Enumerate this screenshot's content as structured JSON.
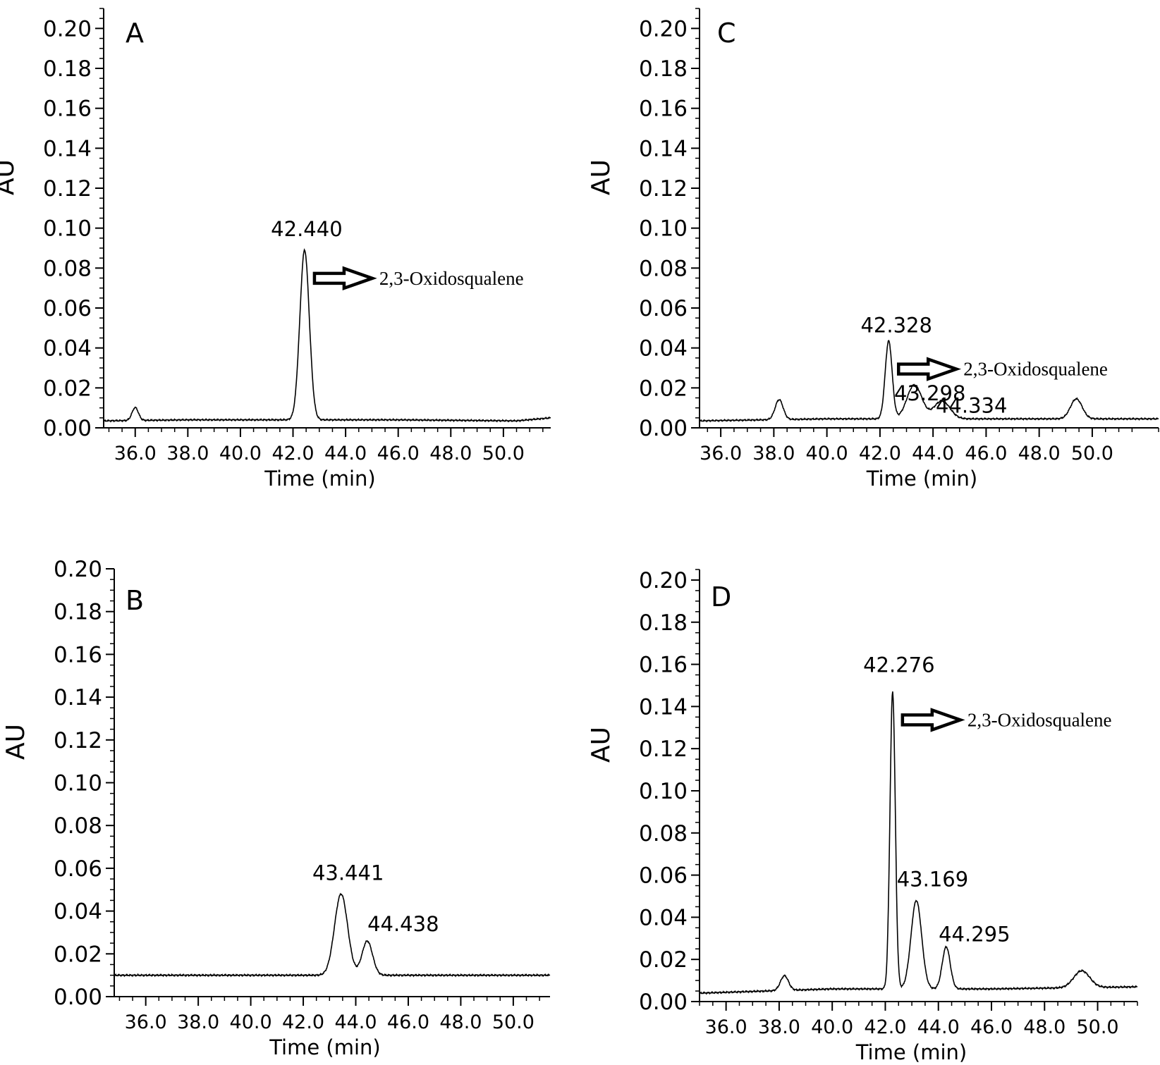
{
  "chart_data": [
    {
      "type": "line",
      "panel_label": "A",
      "xlabel": "Time (min)",
      "ylabel": "AU",
      "xlim": [
        34.8,
        51.8
      ],
      "ylim": [
        0.0,
        0.21
      ],
      "xticks": [
        "36.0",
        "38.0",
        "40.0",
        "42.0",
        "44.0",
        "46.0",
        "48.0",
        "50.0"
      ],
      "yticks": [
        "0.00",
        "0.02",
        "0.04",
        "0.06",
        "0.08",
        "0.10",
        "0.12",
        "0.14",
        "0.16",
        "0.18",
        "0.20"
      ],
      "baseline": [
        [
          34.8,
          0.0035
        ],
        [
          38.0,
          0.004
        ],
        [
          41.0,
          0.004
        ],
        [
          46.0,
          0.004
        ],
        [
          50.5,
          0.0035
        ],
        [
          51.8,
          0.005
        ]
      ],
      "peaks": [
        {
          "rt": 42.44,
          "height": 0.085,
          "width": 0.18,
          "label": "42.440"
        },
        {
          "rt": 36.0,
          "height": 0.0065,
          "width": 0.12
        }
      ],
      "annotation": "2,3-Oxidosqualene",
      "annotation_target": "42.440"
    },
    {
      "type": "line",
      "panel_label": "B",
      "xlabel": "Time (min)",
      "ylabel": "AU",
      "xlim": [
        34.8,
        51.4
      ],
      "ylim": [
        0.0,
        0.2
      ],
      "xticks": [
        "36.0",
        "38.0",
        "40.0",
        "42.0",
        "44.0",
        "46.0",
        "48.0",
        "50.0"
      ],
      "yticks": [
        "0.00",
        "0.02",
        "0.04",
        "0.06",
        "0.08",
        "0.10",
        "0.12",
        "0.14",
        "0.16",
        "0.18",
        "0.20"
      ],
      "baseline": [
        [
          34.8,
          0.01
        ],
        [
          51.4,
          0.01
        ]
      ],
      "peaks": [
        {
          "rt": 43.441,
          "height": 0.038,
          "width": 0.25,
          "label": "43.441"
        },
        {
          "rt": 44.438,
          "height": 0.016,
          "width": 0.2,
          "label": "44.438"
        }
      ]
    },
    {
      "type": "line",
      "panel_label": "C",
      "xlabel": "Time (min)",
      "ylabel": "AU",
      "xlim": [
        35.2,
        52.5
      ],
      "ylim": [
        0.0,
        0.21
      ],
      "xticks": [
        "36.0",
        "38.0",
        "40.0",
        "42.0",
        "44.0",
        "46.0",
        "48.0",
        "50.0"
      ],
      "yticks": [
        "0.00",
        "0.02",
        "0.04",
        "0.06",
        "0.08",
        "0.10",
        "0.12",
        "0.14",
        "0.16",
        "0.18",
        "0.20"
      ],
      "baseline": [
        [
          35.2,
          0.0035
        ],
        [
          40.0,
          0.0045
        ],
        [
          46.0,
          0.0045
        ],
        [
          52.5,
          0.0045
        ]
      ],
      "peaks": [
        {
          "rt": 42.328,
          "height": 0.039,
          "width": 0.13,
          "label": "42.328"
        },
        {
          "rt": 43.298,
          "height": 0.017,
          "width": 0.28,
          "label": "43.298"
        },
        {
          "rt": 44.334,
          "height": 0.009,
          "width": 0.3,
          "label": "44.334"
        },
        {
          "rt": 38.2,
          "height": 0.01,
          "width": 0.15
        },
        {
          "rt": 49.4,
          "height": 0.01,
          "width": 0.22
        }
      ],
      "annotation": "2,3-Oxidosqualene",
      "annotation_target": "42.328"
    },
    {
      "type": "line",
      "panel_label": "D",
      "xlabel": "Time (min)",
      "ylabel": "AU",
      "xlim": [
        35.0,
        51.5
      ],
      "ylim": [
        0.0,
        0.205
      ],
      "xticks": [
        "36.0",
        "38.0",
        "40.0",
        "42.0",
        "44.0",
        "46.0",
        "48.0",
        "50.0"
      ],
      "yticks": [
        "0.00",
        "0.02",
        "0.04",
        "0.06",
        "0.08",
        "0.10",
        "0.12",
        "0.14",
        "0.16",
        "0.18",
        "0.20"
      ],
      "baseline": [
        [
          35.0,
          0.004
        ],
        [
          40.0,
          0.006
        ],
        [
          46.0,
          0.006
        ],
        [
          51.5,
          0.007
        ]
      ],
      "peaks": [
        {
          "rt": 42.276,
          "height": 0.141,
          "width": 0.1,
          "label": "42.276"
        },
        {
          "rt": 43.169,
          "height": 0.042,
          "width": 0.2,
          "label": "43.169"
        },
        {
          "rt": 44.295,
          "height": 0.02,
          "width": 0.15,
          "label": "44.295"
        },
        {
          "rt": 38.2,
          "height": 0.007,
          "width": 0.15
        },
        {
          "rt": 49.4,
          "height": 0.008,
          "width": 0.3
        }
      ],
      "annotation": "2,3-Oxidosqualene",
      "annotation_target": "42.276"
    }
  ]
}
